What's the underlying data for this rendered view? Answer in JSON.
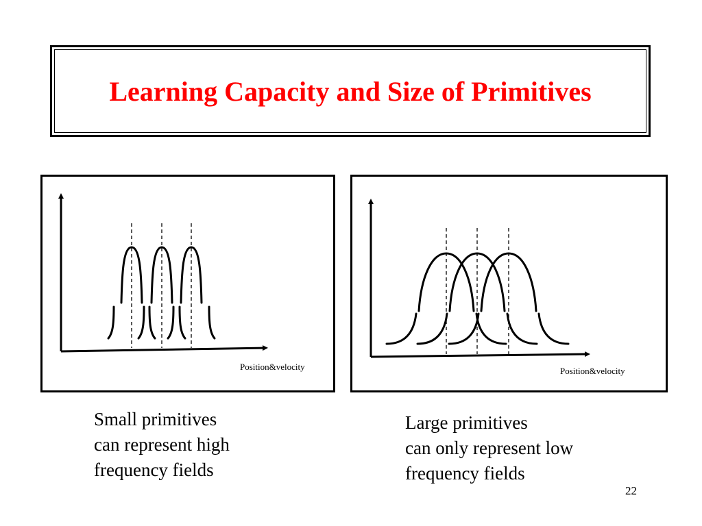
{
  "slide": {
    "title": "Learning Capacity and Size of Primitives",
    "page_number": "22",
    "title_color": "#ff0000"
  },
  "diagrams": {
    "left": {
      "axis_label": "Position&velocity",
      "primitive_size": "small",
      "primitive_count": 3
    },
    "right": {
      "axis_label": "Position&velocity",
      "primitive_size": "large",
      "primitive_count": 3
    }
  },
  "captions": {
    "left": [
      "Small primitives",
      "can represent high",
      "frequency fields"
    ],
    "right": [
      "Large primitives",
      "can only represent low",
      "frequency fields"
    ]
  }
}
